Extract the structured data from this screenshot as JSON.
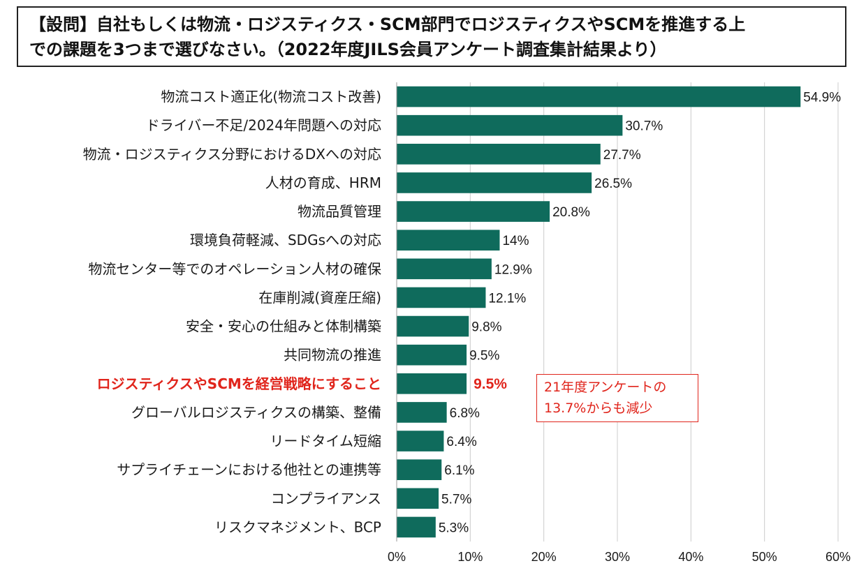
{
  "title": {
    "line1": "【設問】自社もしくは物流・ロジスティクス・SCM部門でロジスティクスやSCMを推進する上",
    "line2": "での課題を3つまで選びなさい。（2022年度JILS会員アンケート調査集計結果より）"
  },
  "chart_data": {
    "type": "bar",
    "orientation": "horizontal",
    "categories": [
      "物流コスト適正化(物流コスト改善)",
      "ドライバー不足/2024年問題への対応",
      "物流・ロジスティクス分野におけるDXへの対応",
      "人材の育成、HRM",
      "物流品質管理",
      "環境負荷軽減、SDGsへの対応",
      "物流センター等でのオペレーション人材の確保",
      "在庫削減(資産圧縮)",
      "安全・安心の仕組みと体制構築",
      "共同物流の推進",
      "ロジスティクスやSCMを経営戦略にすること",
      "グローバルロジスティクスの構築、整備",
      "リードタイム短縮",
      "サプライチェーンにおける他社との連携等",
      "コンプライアンス",
      "リスクマネジメント、BCP"
    ],
    "values": [
      54.9,
      30.7,
      27.7,
      26.5,
      20.8,
      14,
      12.9,
      12.1,
      9.8,
      9.5,
      9.5,
      6.8,
      6.4,
      6.1,
      5.7,
      5.3
    ],
    "value_labels": [
      "54.9%",
      "30.7%",
      "27.7%",
      "26.5%",
      "20.8%",
      "14%",
      "12.9%",
      "12.1%",
      "9.8%",
      "9.5%",
      "9.5%",
      "6.8%",
      "6.4%",
      "6.1%",
      "5.7%",
      "5.3%"
    ],
    "highlight_index": 10,
    "xlim": [
      0,
      60
    ],
    "xticks": [
      0,
      10,
      20,
      30,
      40,
      50,
      60
    ],
    "xtick_labels": [
      "0%",
      "10%",
      "20%",
      "30%",
      "40%",
      "50%",
      "60%"
    ],
    "xlabel": "",
    "ylabel": "",
    "grid": "vertical",
    "bar_color": "#0f6b5c",
    "highlight_color": "#e0241b",
    "gridline_color": "#cccccc",
    "annotation": {
      "line1": "21年度アンケートの",
      "line2": "13.7%からも減少",
      "color": "#e0241b"
    }
  }
}
